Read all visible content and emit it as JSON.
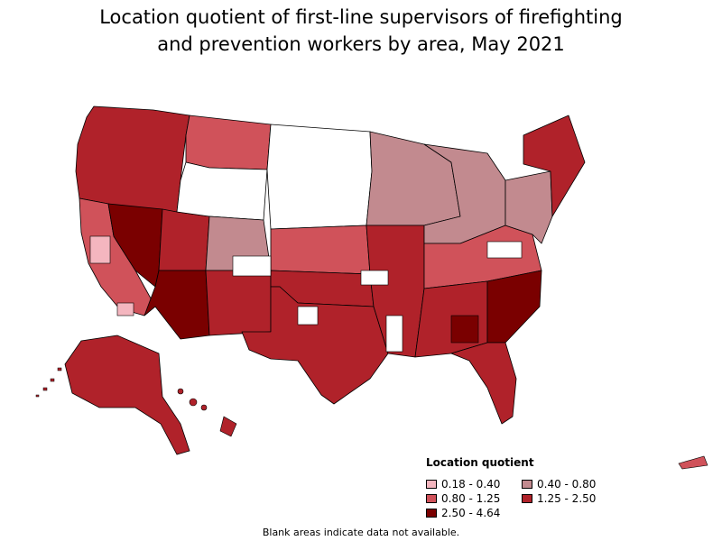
{
  "title_line1": "Location quotient of first-line supervisors of firefighting",
  "title_line2": "and prevention workers by area, May 2021",
  "legend": {
    "title": "Location quotient",
    "items": [
      {
        "label": "0.18 - 0.40",
        "color": "#f4b6bf"
      },
      {
        "label": "0.40 - 0.80",
        "color": "#c28a8f"
      },
      {
        "label": "0.80 - 1.25",
        "color": "#d0525a"
      },
      {
        "label": "1.25 - 2.50",
        "color": "#b0222a"
      },
      {
        "label": "2.50 - 4.64",
        "color": "#7a0000"
      }
    ]
  },
  "footnote": "Blank areas indicate data not available.",
  "regions": [
    {
      "name": "Pacific Northwest",
      "class": "1.25 - 2.50"
    },
    {
      "name": "Nevada",
      "class": "2.50 - 4.64"
    },
    {
      "name": "Arizona",
      "class": "2.50 - 4.64"
    },
    {
      "name": "New Mexico",
      "class": "1.25 - 2.50"
    },
    {
      "name": "Alaska",
      "class": "1.25 - 2.50"
    },
    {
      "name": "Hawaii",
      "class": "1.25 - 2.50"
    },
    {
      "name": "Puerto Rico",
      "class": "0.80 - 1.25"
    },
    {
      "name": "Northern Plains",
      "class": "Blank"
    },
    {
      "name": "Texas",
      "class": "1.25 - 2.50"
    },
    {
      "name": "Southeast",
      "class": "1.25 - 2.50"
    },
    {
      "name": "Georgia",
      "class": "2.50 - 4.64"
    },
    {
      "name": "Florida",
      "class": "1.25 - 2.50"
    },
    {
      "name": "Great Lakes",
      "class": "0.40 - 0.80"
    },
    {
      "name": "New England",
      "class": "1.25 - 2.50"
    }
  ]
}
